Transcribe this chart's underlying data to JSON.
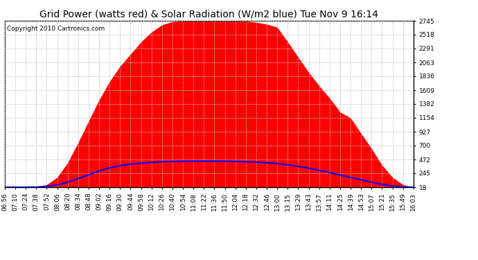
{
  "title": "Grid Power (watts red) & Solar Radiation (W/m2 blue) Tue Nov 9 16:14",
  "copyright_text": "Copyright 2010 Cartronics.com",
  "yticks": [
    18.0,
    245.3,
    472.5,
    699.8,
    927.0,
    1154.3,
    1381.6,
    1608.8,
    1836.1,
    2063.3,
    2290.6,
    2517.9,
    2745.1
  ],
  "ymin": 18.0,
  "ymax": 2745.1,
  "fill_color": "#FF0000",
  "line_color": "#0000FF",
  "background_color": "#FFFFFF",
  "grid_color": "#C0C0C0",
  "title_fontsize": 10,
  "copyright_fontsize": 6.5,
  "tick_fontsize": 6.5,
  "grid_power": [
    18,
    18,
    18,
    25,
    60,
    180,
    420,
    750,
    1100,
    1450,
    1750,
    2000,
    2200,
    2400,
    2560,
    2680,
    2730,
    2745,
    2745,
    2745,
    2745,
    2745,
    2745,
    2740,
    2720,
    2690,
    2640,
    2400,
    2150,
    1900,
    1680,
    1480,
    1250,
    1154,
    900,
    650,
    380,
    180,
    60,
    18
  ],
  "solar_rad": [
    18,
    18,
    18,
    20,
    30,
    55,
    100,
    160,
    220,
    285,
    335,
    370,
    395,
    412,
    425,
    435,
    440,
    443,
    445,
    445,
    445,
    443,
    440,
    435,
    428,
    418,
    405,
    385,
    360,
    330,
    295,
    258,
    218,
    178,
    140,
    100,
    65,
    38,
    22,
    18
  ],
  "xtick_labels": [
    "06:56",
    "07:10",
    "07:24",
    "07:38",
    "07:52",
    "08:06",
    "08:20",
    "08:34",
    "08:48",
    "09:02",
    "09:16",
    "09:30",
    "09:44",
    "09:58",
    "10:12",
    "10:26",
    "10:40",
    "10:54",
    "11:08",
    "11:22",
    "11:36",
    "11:50",
    "12:04",
    "12:18",
    "12:32",
    "12:46",
    "13:00",
    "13:15",
    "13:29",
    "13:43",
    "13:57",
    "14:11",
    "14:25",
    "14:39",
    "14:53",
    "15:07",
    "15:21",
    "15:35",
    "15:49",
    "16:03"
  ]
}
